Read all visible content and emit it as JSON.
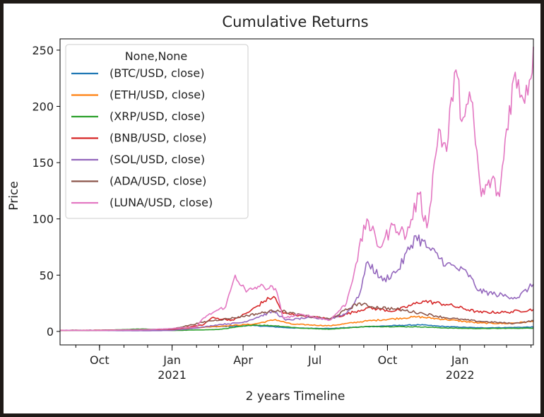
{
  "chart_data": {
    "type": "line",
    "title": "Cumulative Returns",
    "xlabel": "2 years Timeline",
    "ylabel": "Price",
    "ylim": [
      -12,
      260
    ],
    "y_ticks": [
      0,
      50,
      100,
      150,
      200,
      250
    ],
    "x_range": [
      "2020-08-12",
      "2022-04-04"
    ],
    "x_ticks": [
      {
        "date": "2020-10-01",
        "label": "Oct",
        "sublabel": ""
      },
      {
        "date": "2021-01-01",
        "label": "Jan",
        "sublabel": "2021"
      },
      {
        "date": "2021-04-01",
        "label": "Apr",
        "sublabel": ""
      },
      {
        "date": "2021-07-01",
        "label": "Jul",
        "sublabel": ""
      },
      {
        "date": "2021-10-01",
        "label": "Oct",
        "sublabel": ""
      },
      {
        "date": "2022-01-01",
        "label": "Jan",
        "sublabel": "2022"
      }
    ],
    "legend": {
      "title": "None,None",
      "position": "upper-left"
    },
    "grid": false,
    "series": [
      {
        "name": "(BTC/USD, close)",
        "color": "#1f77b4",
        "points": [
          [
            "2020-08-12",
            1.0
          ],
          [
            "2020-10-01",
            1.0
          ],
          [
            "2020-12-01",
            1.6
          ],
          [
            "2021-01-01",
            2.3
          ],
          [
            "2021-02-15",
            4.0
          ],
          [
            "2021-04-15",
            5.2
          ],
          [
            "2021-06-01",
            3.1
          ],
          [
            "2021-07-20",
            2.6
          ],
          [
            "2021-09-01",
            4.1
          ],
          [
            "2021-10-20",
            5.4
          ],
          [
            "2021-11-10",
            5.9
          ],
          [
            "2021-12-15",
            4.2
          ],
          [
            "2022-01-25",
            3.2
          ],
          [
            "2022-03-01",
            3.4
          ],
          [
            "2022-04-04",
            3.9
          ]
        ]
      },
      {
        "name": "(ETH/USD, close)",
        "color": "#ff7f0e",
        "points": [
          [
            "2020-08-12",
            1.0
          ],
          [
            "2020-10-01",
            0.9
          ],
          [
            "2020-12-01",
            1.5
          ],
          [
            "2021-01-01",
            2.0
          ],
          [
            "2021-02-20",
            4.2
          ],
          [
            "2021-04-15",
            6.5
          ],
          [
            "2021-05-12",
            10.5
          ],
          [
            "2021-06-01",
            6.5
          ],
          [
            "2021-07-20",
            5.0
          ],
          [
            "2021-09-01",
            9.0
          ],
          [
            "2021-11-08",
            13.0
          ],
          [
            "2021-12-15",
            10.5
          ],
          [
            "2022-01-25",
            7.5
          ],
          [
            "2022-03-01",
            7.0
          ],
          [
            "2022-04-04",
            8.8
          ]
        ]
      },
      {
        "name": "(XRP/USD, close)",
        "color": "#2ca02c",
        "points": [
          [
            "2020-08-12",
            1.0
          ],
          [
            "2020-10-01",
            0.8
          ],
          [
            "2020-11-25",
            2.2
          ],
          [
            "2021-01-01",
            0.8
          ],
          [
            "2021-03-01",
            1.7
          ],
          [
            "2021-04-14",
            5.8
          ],
          [
            "2021-05-12",
            5.0
          ],
          [
            "2021-06-15",
            2.8
          ],
          [
            "2021-07-20",
            2.0
          ],
          [
            "2021-09-06",
            4.4
          ],
          [
            "2021-11-10",
            4.1
          ],
          [
            "2021-12-15",
            3.0
          ],
          [
            "2022-01-25",
            2.5
          ],
          [
            "2022-04-04",
            2.9
          ]
        ]
      },
      {
        "name": "(BNB/USD, close)",
        "color": "#d62728",
        "points": [
          [
            "2020-08-12",
            1.0
          ],
          [
            "2020-10-01",
            1.1
          ],
          [
            "2020-12-01",
            1.3
          ],
          [
            "2021-01-01",
            1.6
          ],
          [
            "2021-02-10",
            6.0
          ],
          [
            "2021-02-20",
            12.0
          ],
          [
            "2021-03-20",
            10.0
          ],
          [
            "2021-04-10",
            18.0
          ],
          [
            "2021-04-28",
            27.0
          ],
          [
            "2021-05-10",
            31.0
          ],
          [
            "2021-05-22",
            16.0
          ],
          [
            "2021-06-15",
            14.0
          ],
          [
            "2021-07-20",
            11.0
          ],
          [
            "2021-09-06",
            21.0
          ],
          [
            "2021-10-10",
            18.0
          ],
          [
            "2021-11-15",
            27.0
          ],
          [
            "2021-12-15",
            24.0
          ],
          [
            "2022-01-25",
            17.0
          ],
          [
            "2022-03-01",
            17.0
          ],
          [
            "2022-04-04",
            19.5
          ]
        ]
      },
      {
        "name": "(SOL/USD, close)",
        "color": "#9467bd",
        "points": [
          [
            "2020-08-12",
            1.0
          ],
          [
            "2020-10-01",
            0.8
          ],
          [
            "2020-12-01",
            0.6
          ],
          [
            "2021-01-01",
            0.9
          ],
          [
            "2021-02-01",
            3.0
          ],
          [
            "2021-03-01",
            6.0
          ],
          [
            "2021-04-01",
            8.0
          ],
          [
            "2021-05-10",
            18.0
          ],
          [
            "2021-05-25",
            10.0
          ],
          [
            "2021-06-20",
            12.0
          ],
          [
            "2021-07-20",
            11.0
          ],
          [
            "2021-08-10",
            16.0
          ],
          [
            "2021-08-25",
            30.0
          ],
          [
            "2021-09-06",
            62.0
          ],
          [
            "2021-09-25",
            45.0
          ],
          [
            "2021-10-15",
            55.0
          ],
          [
            "2021-11-06",
            85.0
          ],
          [
            "2021-11-25",
            72.0
          ],
          [
            "2021-12-15",
            60.0
          ],
          [
            "2022-01-10",
            52.0
          ],
          [
            "2022-01-25",
            36.0
          ],
          [
            "2022-02-15",
            33.0
          ],
          [
            "2022-03-15",
            30.0
          ],
          [
            "2022-04-04",
            42.0
          ]
        ]
      },
      {
        "name": "(ADA/USD, close)",
        "color": "#8c564b",
        "points": [
          [
            "2020-08-12",
            1.0
          ],
          [
            "2020-10-01",
            1.0
          ],
          [
            "2020-12-01",
            1.7
          ],
          [
            "2021-01-01",
            2.2
          ],
          [
            "2021-02-15",
            9.0
          ],
          [
            "2021-03-20",
            12.0
          ],
          [
            "2021-05-15",
            19.0
          ],
          [
            "2021-06-15",
            14.0
          ],
          [
            "2021-07-20",
            11.0
          ],
          [
            "2021-08-25",
            25.0
          ],
          [
            "2021-09-10",
            22.0
          ],
          [
            "2021-10-10",
            20.0
          ],
          [
            "2021-11-15",
            16.0
          ],
          [
            "2021-12-15",
            12.0
          ],
          [
            "2022-01-25",
            9.0
          ],
          [
            "2022-03-10",
            7.0
          ],
          [
            "2022-04-04",
            9.5
          ]
        ]
      },
      {
        "name": "(LUNA/USD, close)",
        "color": "#e377c2",
        "points": [
          [
            "2020-08-12",
            1.0
          ],
          [
            "2020-10-01",
            0.9
          ],
          [
            "2020-12-01",
            1.5
          ],
          [
            "2021-01-01",
            2.5
          ],
          [
            "2021-02-01",
            4.0
          ],
          [
            "2021-02-10",
            12.0
          ],
          [
            "2021-02-25",
            18.0
          ],
          [
            "2021-03-10",
            22.0
          ],
          [
            "2021-03-22",
            50.0
          ],
          [
            "2021-04-05",
            35.0
          ],
          [
            "2021-04-20",
            40.0
          ],
          [
            "2021-05-12",
            38.0
          ],
          [
            "2021-05-22",
            12.0
          ],
          [
            "2021-06-15",
            15.0
          ],
          [
            "2021-07-20",
            10.0
          ],
          [
            "2021-08-10",
            25.0
          ],
          [
            "2021-08-22",
            60.0
          ],
          [
            "2021-09-05",
            100.0
          ],
          [
            "2021-09-20",
            75.0
          ],
          [
            "2021-10-10",
            95.0
          ],
          [
            "2021-10-25",
            85.0
          ],
          [
            "2021-11-10",
            122.0
          ],
          [
            "2021-11-20",
            92.0
          ],
          [
            "2021-12-05",
            180.0
          ],
          [
            "2021-12-15",
            160.0
          ],
          [
            "2021-12-25",
            230.0
          ],
          [
            "2022-01-05",
            190.0
          ],
          [
            "2022-01-15",
            205.0
          ],
          [
            "2022-01-28",
            120.0
          ],
          [
            "2022-02-10",
            135.0
          ],
          [
            "2022-02-20",
            120.0
          ],
          [
            "2022-03-01",
            180.0
          ],
          [
            "2022-03-10",
            225.0
          ],
          [
            "2022-03-20",
            210.0
          ],
          [
            "2022-04-01",
            225.0
          ],
          [
            "2022-04-04",
            253.0
          ]
        ]
      }
    ]
  }
}
